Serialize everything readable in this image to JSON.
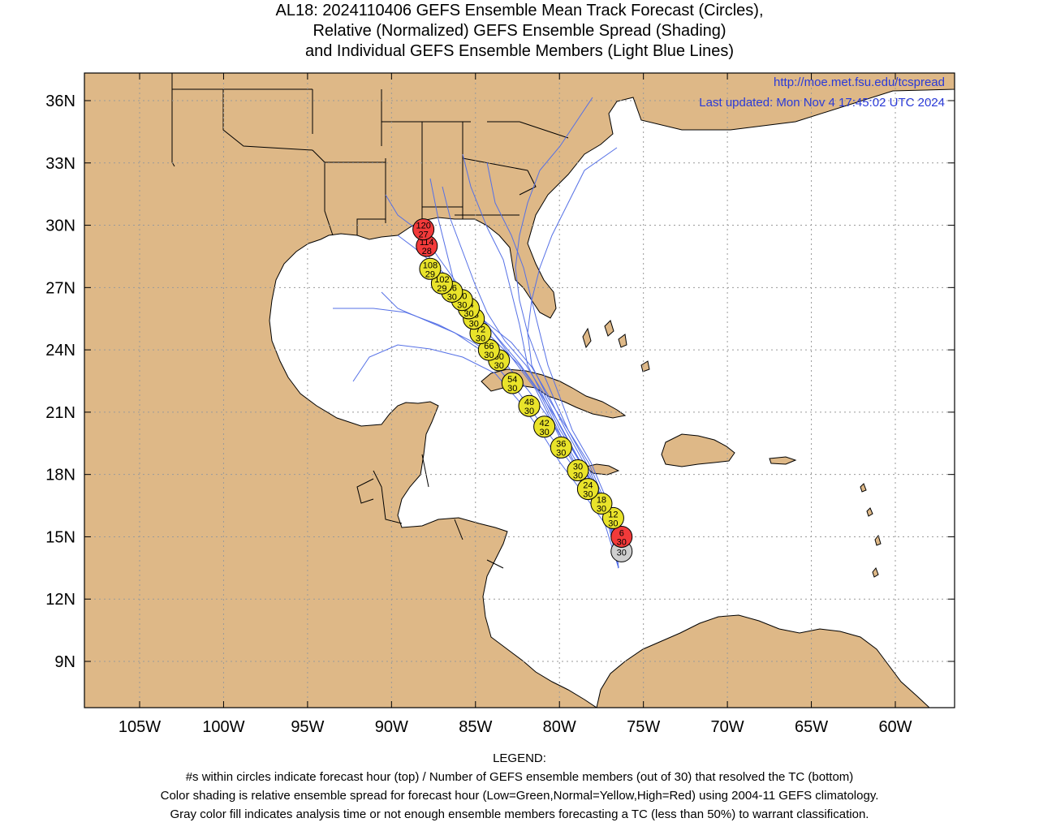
{
  "title_lines": [
    "AL18: 2024110406 GEFS Ensemble Mean Track Forecast (Circles),",
    "Relative (Normalized) GEFS Ensemble Spread (Shading)",
    "and Individual GEFS Ensemble Members (Light Blue Lines)"
  ],
  "url": "http://moe.met.fsu.edu/tcspread",
  "updated": "Last updated: Mon Nov 4 17:45:02 UTC 2024",
  "lat_labels": [
    "36N",
    "33N",
    "30N",
    "27N",
    "24N",
    "21N",
    "18N",
    "15N",
    "12N",
    "9N"
  ],
  "lat_values": [
    36,
    33,
    30,
    27,
    24,
    21,
    18,
    15,
    12,
    9
  ],
  "lon_labels": [
    "105W",
    "100W",
    "95W",
    "90W",
    "85W",
    "80W",
    "75W",
    "70W",
    "65W",
    "60W"
  ],
  "lon_values": [
    -105,
    -100,
    -95,
    -90,
    -85,
    -80,
    -75,
    -70,
    -65,
    -60
  ],
  "colors": {
    "land": "#deb887",
    "ocean": "#ffffff",
    "member_tracks": "#5570e6",
    "spread_low": "#1fc21f",
    "spread_normal": "#e9e32a",
    "spread_high": "#f23a3a",
    "analysis_gray": "#cfcfcf",
    "grid": "#9a9a9a"
  },
  "track_points": [
    {
      "lon": -76.3,
      "lat": 14.3,
      "hour": "",
      "members": "30",
      "spread": "gray"
    },
    {
      "lon": -76.3,
      "lat": 15.0,
      "hour": "6",
      "members": "30",
      "spread": "high"
    },
    {
      "lon": -76.8,
      "lat": 15.9,
      "hour": "12",
      "members": "30",
      "spread": "normal"
    },
    {
      "lon": -77.5,
      "lat": 16.6,
      "hour": "18",
      "members": "30",
      "spread": "normal"
    },
    {
      "lon": -78.3,
      "lat": 17.3,
      "hour": "24",
      "members": "30",
      "spread": "normal"
    },
    {
      "lon": -78.9,
      "lat": 18.2,
      "hour": "30",
      "members": "30",
      "spread": "normal"
    },
    {
      "lon": -79.9,
      "lat": 19.3,
      "hour": "36",
      "members": "30",
      "spread": "normal"
    },
    {
      "lon": -80.9,
      "lat": 20.3,
      "hour": "42",
      "members": "30",
      "spread": "normal"
    },
    {
      "lon": -81.8,
      "lat": 21.3,
      "hour": "48",
      "members": "30",
      "spread": "normal"
    },
    {
      "lon": -82.8,
      "lat": 22.4,
      "hour": "54",
      "members": "30",
      "spread": "normal"
    },
    {
      "lon": -83.6,
      "lat": 23.5,
      "hour": "60",
      "members": "30",
      "spread": "normal"
    },
    {
      "lon": -84.2,
      "lat": 24.0,
      "hour": "66",
      "members": "30",
      "spread": "normal"
    },
    {
      "lon": -84.7,
      "lat": 24.8,
      "hour": "72",
      "members": "30",
      "spread": "normal"
    },
    {
      "lon": -85.1,
      "lat": 25.5,
      "hour": "78",
      "members": "30",
      "spread": "normal"
    },
    {
      "lon": -85.4,
      "lat": 26.0,
      "hour": "84",
      "members": "30",
      "spread": "normal"
    },
    {
      "lon": -85.8,
      "lat": 26.4,
      "hour": "90",
      "members": "30",
      "spread": "normal"
    },
    {
      "lon": -86.4,
      "lat": 26.8,
      "hour": "96",
      "members": "30",
      "spread": "normal"
    },
    {
      "lon": -87.0,
      "lat": 27.2,
      "hour": "102",
      "members": "29",
      "spread": "normal"
    },
    {
      "lon": -87.7,
      "lat": 27.9,
      "hour": "108",
      "members": "29",
      "spread": "normal"
    },
    {
      "lon": -87.9,
      "lat": 29.0,
      "hour": "114",
      "members": "28",
      "spread": "high"
    },
    {
      "lon": -88.1,
      "lat": 29.8,
      "hour": "120",
      "members": "27",
      "spread": "high"
    }
  ],
  "legend": {
    "heading": "LEGEND:",
    "lines": [
      "#s within circles indicate forecast hour (top) / Number of GEFS ensemble members (out of 30) that resolved the TC (bottom)",
      "Color shading is relative ensemble spread for forecast hour (Low=Green,Normal=Yellow,High=Red) using 2004-11 GEFS climatology.",
      "Gray color fill indicates analysis time or not enough ensemble members forecasting a TC (less than 50%) to warrant classification."
    ]
  }
}
